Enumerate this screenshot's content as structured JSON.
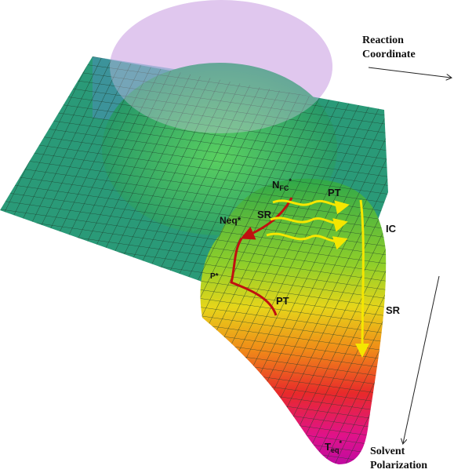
{
  "axes": {
    "reaction_coordinate": [
      "Reaction",
      "Coordinate"
    ],
    "solvent_polarization": [
      "Solvent",
      "Polarization"
    ]
  },
  "labels": {
    "n_fc": {
      "base": "N",
      "sub": "FC",
      "sup": "*"
    },
    "neq": "Neq*",
    "sr_upper": "SR",
    "pt_upper": "PT",
    "ic": "IC",
    "p_star": "P*",
    "pt_lower": "PT",
    "sr_right": "SR",
    "t_eq": {
      "base": "T",
      "sub": "eq",
      "sup": "*"
    }
  }
}
